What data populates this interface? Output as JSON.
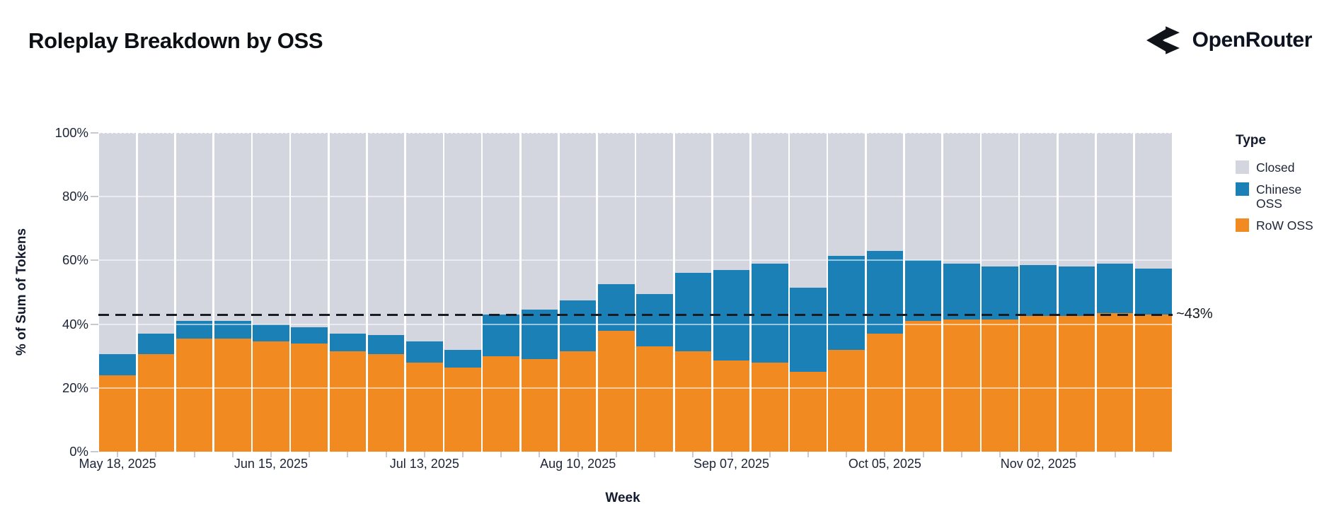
{
  "header": {
    "title": "Roleplay Breakdown by OSS",
    "brand": "OpenRouter"
  },
  "legend": {
    "title": "Type",
    "items": [
      {
        "label": "Closed",
        "color": "#d3d5df"
      },
      {
        "label": "Chinese OSS",
        "color": "#1a80b6"
      },
      {
        "label": "RoW OSS",
        "color": "#f18a21"
      }
    ]
  },
  "annotations": {
    "reference_label": "~43%"
  },
  "chart_data": {
    "type": "bar",
    "stacked": true,
    "normalized": true,
    "title": "Roleplay Breakdown by OSS",
    "xlabel": "Week",
    "ylabel": "% of Sum of Tokens",
    "ylim": [
      0,
      100
    ],
    "grid": true,
    "legend_position": "right",
    "y_ticks": [
      "0%",
      "20%",
      "40%",
      "60%",
      "80%",
      "100%"
    ],
    "x": [
      "May 18, 2025",
      "May 25, 2025",
      "Jun 01, 2025",
      "Jun 08, 2025",
      "Jun 15, 2025",
      "Jun 22, 2025",
      "Jun 29, 2025",
      "Jul 06, 2025",
      "Jul 13, 2025",
      "Jul 20, 2025",
      "Jul 27, 2025",
      "Aug 03, 2025",
      "Aug 10, 2025",
      "Aug 17, 2025",
      "Aug 24, 2025",
      "Aug 31, 2025",
      "Sep 07, 2025",
      "Sep 14, 2025",
      "Sep 21, 2025",
      "Sep 28, 2025",
      "Oct 05, 2025",
      "Oct 12, 2025",
      "Oct 19, 2025",
      "Oct 26, 2025",
      "Nov 02, 2025",
      "Nov 09, 2025",
      "Nov 16, 2025",
      "Nov 23, 2025"
    ],
    "x_tick_labels": [
      "May 18, 2025",
      "Jun 15, 2025",
      "Jul 13, 2025",
      "Aug 10, 2025",
      "Sep 07, 2025",
      "Oct 05, 2025",
      "Nov 02, 2025"
    ],
    "x_tick_indices": [
      0,
      4,
      8,
      12,
      16,
      20,
      24
    ],
    "series": [
      {
        "name": "RoW OSS",
        "color": "#f18a21",
        "values": [
          24,
          30.5,
          35.5,
          35.5,
          34.5,
          34,
          31.5,
          30.5,
          28,
          26.5,
          30,
          29,
          31.5,
          38,
          33,
          31.5,
          28.5,
          28,
          25,
          32,
          37,
          41,
          41.5,
          41.5,
          42.5,
          42.5,
          43.5,
          43
        ]
      },
      {
        "name": "Chinese OSS",
        "color": "#1a80b6",
        "values": [
          6.5,
          6.5,
          5.5,
          5.5,
          5.5,
          5,
          5.5,
          6,
          6.5,
          5.5,
          13,
          15.5,
          16,
          14.5,
          16.5,
          24.5,
          28.5,
          31,
          26.5,
          29.5,
          26,
          19,
          17.5,
          16.5,
          16,
          15.5,
          15.5,
          14.5
        ]
      },
      {
        "name": "Closed",
        "color": "#d3d5df",
        "values": [
          69.5,
          63,
          59,
          59,
          60,
          61,
          63,
          63.5,
          65.5,
          68,
          57,
          55.5,
          52.5,
          47.5,
          50.5,
          44,
          43,
          41,
          48.5,
          38.5,
          37,
          40,
          41,
          42,
          41.5,
          42,
          41,
          42.5
        ]
      }
    ],
    "reference_line": {
      "value": 43,
      "label": "~43%",
      "style": "dashed",
      "color": "#191c22"
    }
  }
}
